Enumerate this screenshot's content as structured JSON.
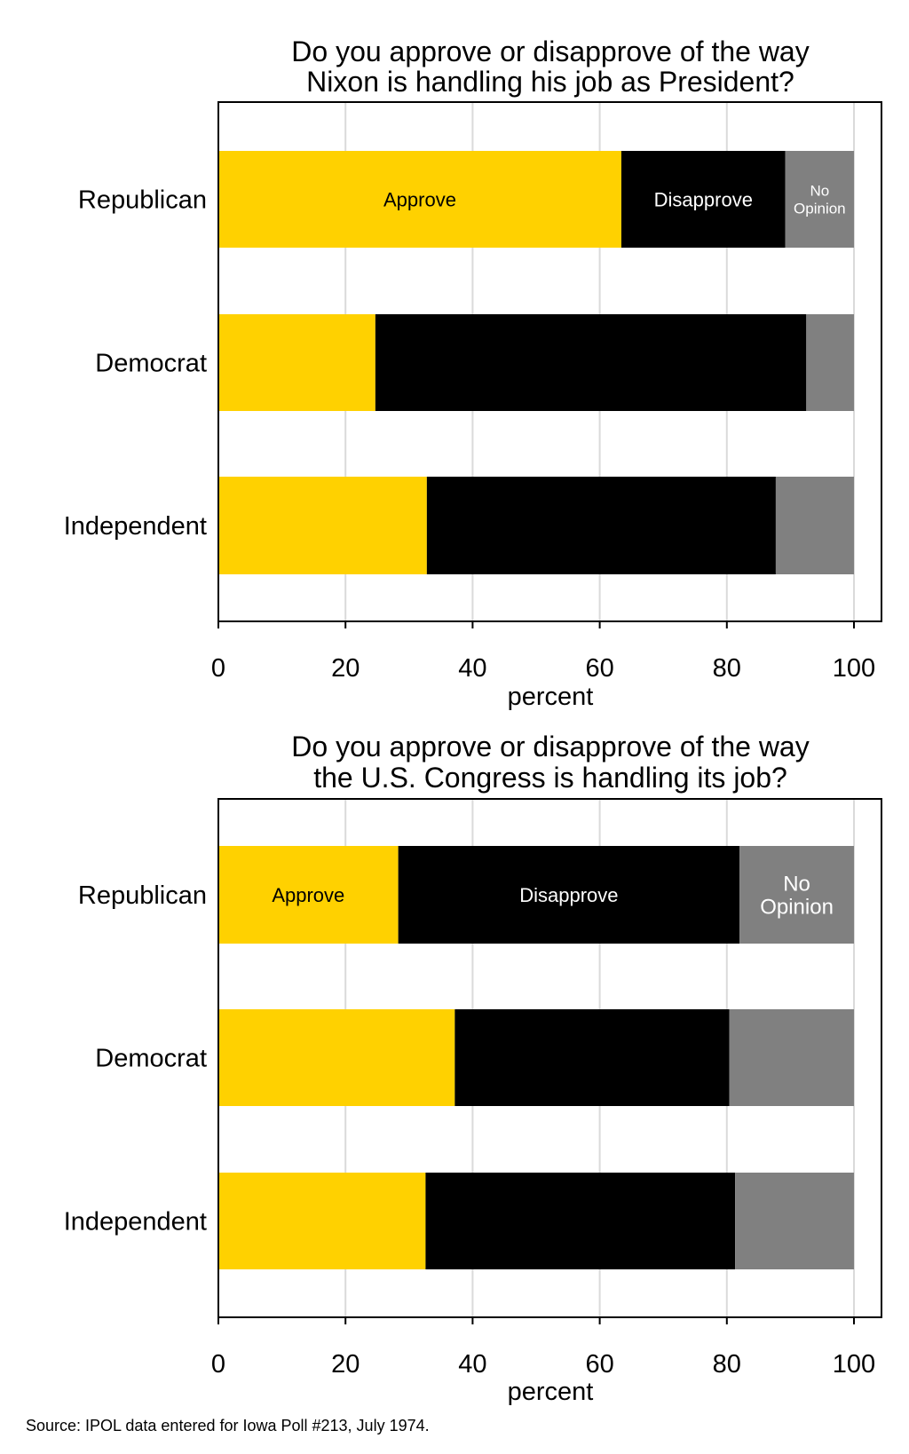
{
  "colors": {
    "approve": "#FFD100",
    "disapprove": "#000000",
    "no_opinion": "#808080",
    "grid": "#DADADA"
  },
  "source": "Source: IPOL data entered for Iowa Poll #213, July 1974.",
  "chart_data": [
    {
      "type": "bar",
      "orientation": "horizontal",
      "stacked": true,
      "title": [
        "Do you approve or disapprove of the way",
        "Nixon is handling his job as President?"
      ],
      "xlabel": "percent",
      "xlim": [
        0,
        100
      ],
      "xticks": [
        "0",
        "20",
        "40",
        "60",
        "80",
        "100"
      ],
      "grid": true,
      "categories": [
        "Republican",
        "Democrat",
        "Independent"
      ],
      "series": [
        {
          "name": "Approve",
          "values": [
            63.4,
            24.7,
            32.8
          ]
        },
        {
          "name": "Disapprove",
          "values": [
            25.8,
            67.8,
            54.9
          ]
        },
        {
          "name": "No Opinion",
          "values": [
            10.8,
            7.5,
            12.3
          ]
        }
      ],
      "segment_labels": [
        "Approve",
        "Disapprove",
        [
          "No",
          "Opinion"
        ]
      ]
    },
    {
      "type": "bar",
      "orientation": "horizontal",
      "stacked": true,
      "title": [
        "Do you approve or disapprove of the way",
        "the U.S. Congress is handling its job?"
      ],
      "xlabel": "percent",
      "xlim": [
        0,
        100
      ],
      "xticks": [
        "0",
        "20",
        "40",
        "60",
        "80",
        "100"
      ],
      "grid": true,
      "categories": [
        "Republican",
        "Democrat",
        "Independent"
      ],
      "series": [
        {
          "name": "Approve",
          "values": [
            28.3,
            37.2,
            32.6
          ]
        },
        {
          "name": "Disapprove",
          "values": [
            53.7,
            43.2,
            48.7
          ]
        },
        {
          "name": "No Opinion",
          "values": [
            18.0,
            19.6,
            18.7
          ]
        }
      ],
      "segment_labels": [
        "Approve",
        "Disapprove",
        [
          "No",
          "Opinion"
        ]
      ]
    }
  ]
}
